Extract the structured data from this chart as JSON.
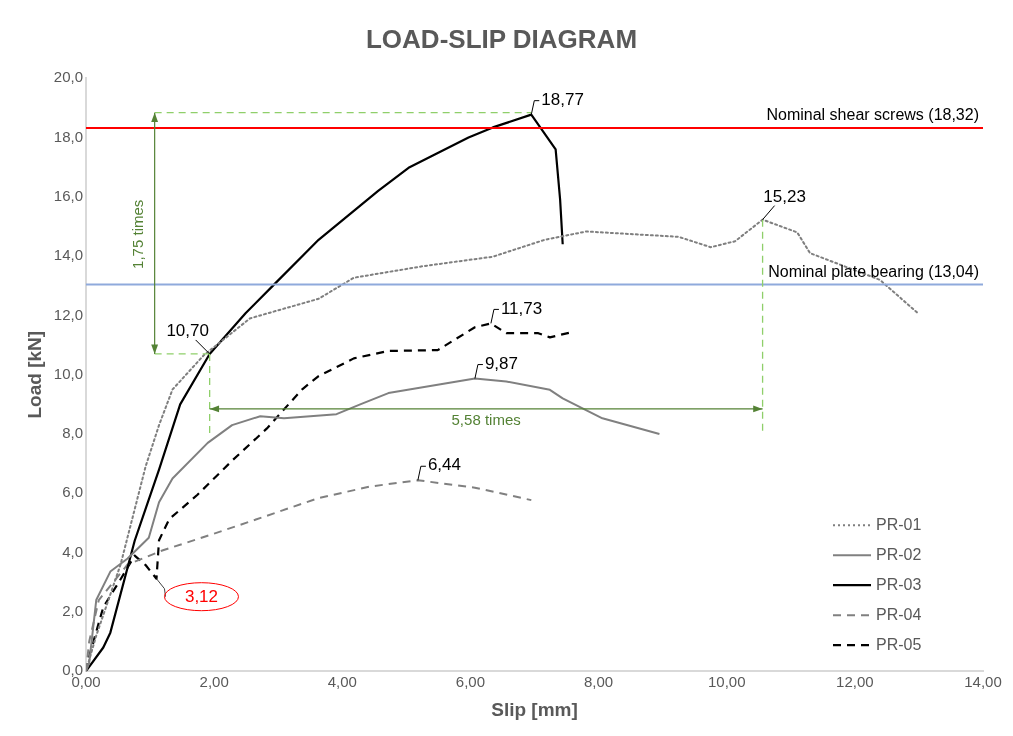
{
  "chart_data": {
    "type": "line",
    "title": "LOAD-SLIP DIAGRAM",
    "xlabel": "Slip [mm]",
    "ylabel": "Load [kN]",
    "xlim": [
      0,
      14
    ],
    "ylim": [
      0,
      20
    ],
    "xticks": [
      {
        "value": 0,
        "label": "0,00"
      },
      {
        "value": 2,
        "label": "2,00"
      },
      {
        "value": 4,
        "label": "4,00"
      },
      {
        "value": 6,
        "label": "6,00"
      },
      {
        "value": 8,
        "label": "8,00"
      },
      {
        "value": 10,
        "label": "10,00"
      },
      {
        "value": 12,
        "label": "12,00"
      },
      {
        "value": 14,
        "label": "14,00"
      }
    ],
    "yticks": [
      {
        "value": 0,
        "label": "0,0"
      },
      {
        "value": 2,
        "label": "2,0"
      },
      {
        "value": 4,
        "label": "4,0"
      },
      {
        "value": 6,
        "label": "6,0"
      },
      {
        "value": 8,
        "label": "8,0"
      },
      {
        "value": 10,
        "label": "10,0"
      },
      {
        "value": 12,
        "label": "12,0"
      },
      {
        "value": 14,
        "label": "14,0"
      },
      {
        "value": 16,
        "label": "16,0"
      },
      {
        "value": 18,
        "label": "18,0"
      },
      {
        "value": 20,
        "label": "20,0"
      }
    ],
    "grid": false,
    "legend": "bottom right",
    "marker": "none",
    "series": [
      {
        "name": "PR-01",
        "color": "#7f7f7f",
        "line_style": "dotted",
        "x": [
          0,
          0.16,
          0.54,
          0.93,
          1.14,
          1.35,
          1.84,
          2.56,
          3.63,
          4.18,
          5.26,
          6.35,
          7.16,
          7.81,
          9.25,
          9.75,
          10.13,
          10.56,
          11.1,
          11.3,
          12.39,
          12.97
        ],
        "values": [
          0,
          1.2,
          3.6,
          6.9,
          8.3,
          9.5,
          10.66,
          11.9,
          12.56,
          13.27,
          13.66,
          13.98,
          14.55,
          14.83,
          14.65,
          14.3,
          14.5,
          15.23,
          14.8,
          14.1,
          13.2,
          12.1
        ]
      },
      {
        "name": "PR-02",
        "color": "#808080",
        "line_style": "solid",
        "x": [
          0,
          0.05,
          0.16,
          0.38,
          0.65,
          0.98,
          1.14,
          1.35,
          1.9,
          2.28,
          2.72,
          3.09,
          3.91,
          4.28,
          4.72,
          6.07,
          6.56,
          7.24,
          7.44,
          8.06,
          8.95
        ],
        "values": [
          0,
          0.28,
          2.4,
          3.36,
          3.8,
          4.5,
          5.7,
          6.5,
          7.7,
          8.3,
          8.6,
          8.53,
          8.67,
          9.0,
          9.38,
          9.87,
          9.77,
          9.49,
          9.2,
          8.53,
          8.0
        ]
      },
      {
        "name": "PR-03",
        "color": "#000000",
        "line_style": "solid",
        "x": [
          0,
          0.27,
          0.38,
          0.76,
          1.14,
          1.47,
          1.93,
          2.49,
          2.93,
          3.63,
          4.56,
          5.05,
          5.97,
          6.35,
          6.95,
          7.33,
          7.4,
          7.44
        ],
        "values": [
          0,
          0.8,
          1.3,
          4.4,
          6.8,
          9.0,
          10.7,
          12.07,
          13.03,
          14.55,
          16.2,
          17.0,
          18.0,
          18.34,
          18.77,
          17.6,
          15.9,
          14.4
        ]
      },
      {
        "name": "PR-04",
        "color": "#808080",
        "line_style": "dashed",
        "x": [
          0,
          0.05,
          0.2,
          0.65,
          1.19,
          2.0,
          2.82,
          3.63,
          4.44,
          5.18,
          6.07,
          6.95
        ],
        "values": [
          0,
          1.0,
          2.4,
          3.6,
          4.07,
          4.64,
          5.24,
          5.84,
          6.23,
          6.44,
          6.19,
          5.77
        ]
      },
      {
        "name": "PR-05",
        "color": "#000000",
        "line_style": "dashed",
        "x": [
          0,
          0.05,
          0.27,
          0.54,
          0.76,
          0.93,
          1.1,
          1.14,
          1.3,
          1.74,
          2.28,
          2.82,
          3.37,
          3.63,
          4.18,
          4.72,
          5.49,
          6.07,
          6.32,
          6.56,
          7.06,
          7.24,
          7.57
        ],
        "values": [
          0,
          0.5,
          2.16,
          3.1,
          3.9,
          3.58,
          3.12,
          4.42,
          5.13,
          5.95,
          7.1,
          8.18,
          9.5,
          9.95,
          10.55,
          10.8,
          10.83,
          11.6,
          11.73,
          11.4,
          11.4,
          11.26,
          11.43
        ]
      }
    ],
    "ref_lines": [
      {
        "axis": "y",
        "value": 18.32,
        "label": "Nominal shear screws (18,32)",
        "color": "#ff0000"
      },
      {
        "axis": "y",
        "value": 13.04,
        "label": "Nominal plate bearing (13,04)",
        "color": "#8faadc"
      }
    ],
    "annotations": [
      {
        "text": "18,77",
        "x": 6.95,
        "y": 18.77
      },
      {
        "text": "10,70",
        "x": 1.93,
        "y": 10.7
      },
      {
        "text": "15,23",
        "x": 10.56,
        "y": 15.23
      },
      {
        "text": "11,73",
        "x": 6.32,
        "y": 11.73
      },
      {
        "text": "9,87",
        "x": 6.07,
        "y": 9.87
      },
      {
        "text": "6,44",
        "x": 5.18,
        "y": 6.44
      },
      {
        "text": "3,12",
        "x": 1.1,
        "y": 3.12
      },
      "1,75 times",
      "5,58 times"
    ]
  }
}
